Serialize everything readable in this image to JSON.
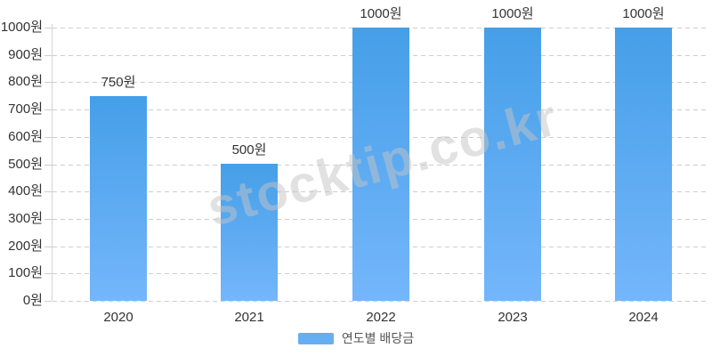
{
  "chart_data": {
    "type": "bar",
    "categories": [
      "2020",
      "2021",
      "2022",
      "2023",
      "2024"
    ],
    "values": [
      750,
      500,
      1000,
      1000,
      1000
    ],
    "series": [
      {
        "name": "연도별 배당금",
        "values": [
          750,
          500,
          1000,
          1000,
          1000
        ]
      }
    ],
    "bar_labels": [
      "750원",
      "500원",
      "1000원",
      "1000원",
      "1000원"
    ],
    "y_tick_labels": [
      "0원",
      "100원",
      "200원",
      "300원",
      "400원",
      "500원",
      "600원",
      "700원",
      "800원",
      "900원",
      "1000원"
    ],
    "title": "",
    "xlabel": "",
    "ylabel": "",
    "unit": "원",
    "ylim": [
      0,
      1000
    ],
    "y_step": 100,
    "grid": "horizontal-dashed",
    "legend_position": "bottom",
    "colors": {
      "bar_gradient_top": "#459fe8",
      "bar_gradient_bottom": "#74b6fb",
      "legend_swatch": "#66aef2",
      "gridline": "#cdcdcd",
      "axis_line": "#d4d4d4",
      "tick_label_text": "#333333",
      "bar_label_text": "#333333",
      "legend_text": "#555555"
    }
  },
  "legend": {
    "label": "연도별 배당금"
  },
  "watermark": {
    "text": "stocktip.co.kr"
  }
}
